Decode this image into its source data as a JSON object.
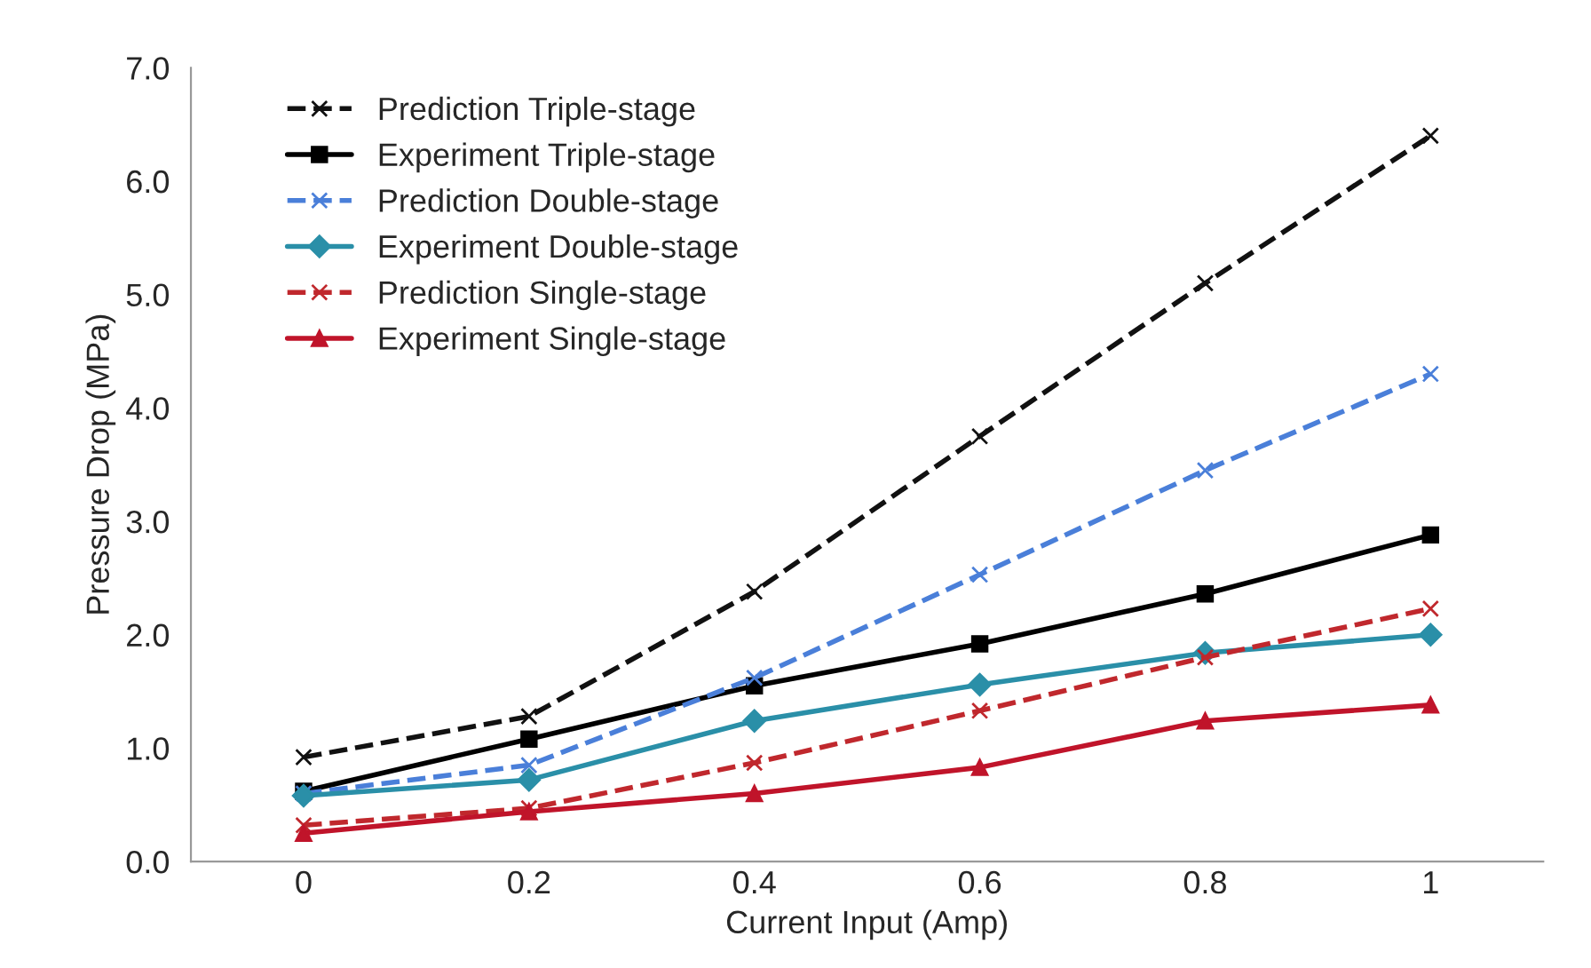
{
  "chart_data": {
    "type": "line",
    "xlabel": "Current Input (Amp)",
    "ylabel": "Pressure Drop (MPa)",
    "categories": [
      "0",
      "0.2",
      "0.4",
      "0.6",
      "0.8",
      "1"
    ],
    "ylim": [
      0,
      7
    ],
    "yticks": [
      {
        "value": 0,
        "label": "0.0"
      },
      {
        "value": 1,
        "label": "1.0"
      },
      {
        "value": 2,
        "label": "2.0"
      },
      {
        "value": 3,
        "label": "3.0"
      },
      {
        "value": 4,
        "label": "4.0"
      },
      {
        "value": 5,
        "label": "5.0"
      },
      {
        "value": 6,
        "label": "6.0"
      },
      {
        "value": 7,
        "label": "7.0"
      }
    ],
    "grid": false,
    "legend": "top left",
    "series": [
      {
        "name": "Prediction Triple-stage",
        "color": "#111111",
        "line_style": "dashed",
        "marker": "cross",
        "values": [
          0.92,
          1.28,
          2.38,
          3.75,
          5.1,
          6.4
        ]
      },
      {
        "name": "Experiment Triple-stage",
        "color": "#000000",
        "line_style": "solid",
        "marker": "square",
        "values": [
          0.62,
          1.08,
          1.55,
          1.92,
          2.36,
          2.88
        ]
      },
      {
        "name": "Prediction Double-stage",
        "color": "#4a7fd9",
        "line_style": "dashed",
        "marker": "cross",
        "values": [
          0.6,
          0.85,
          1.62,
          2.53,
          3.45,
          4.3
        ]
      },
      {
        "name": "Experiment Double-stage",
        "color": "#2a8fa8",
        "line_style": "solid",
        "marker": "diamond",
        "values": [
          0.58,
          0.72,
          1.24,
          1.56,
          1.84,
          2.0
        ]
      },
      {
        "name": "Prediction Single-stage",
        "color": "#c0282d",
        "line_style": "dashed",
        "marker": "cross",
        "values": [
          0.32,
          0.47,
          0.87,
          1.33,
          1.8,
          2.23
        ]
      },
      {
        "name": "Experiment Single-stage",
        "color": "#c0142a",
        "line_style": "solid",
        "marker": "triangle",
        "values": [
          0.25,
          0.44,
          0.6,
          0.83,
          1.24,
          1.38
        ]
      }
    ]
  }
}
